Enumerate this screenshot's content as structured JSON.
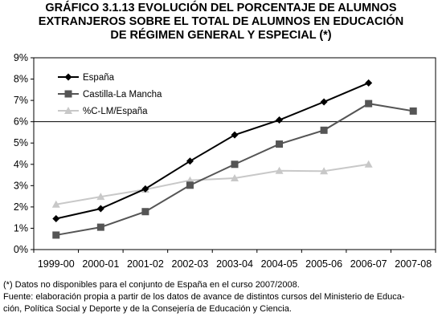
{
  "title_lines": [
    "GRÁFICO 3.1.13 EVOLUCIÓN DEL PORCENTAJE DE ALUMNOS",
    "EXTRANJEROS SOBRE EL TOTAL DE ALUMNOS EN EDUCACIÓN",
    "DE RÉGIMEN GENERAL Y ESPECIAL (*)"
  ],
  "chart_data": {
    "type": "line",
    "categories": [
      "1999-00",
      "2000-01",
      "2001-02",
      "2002-03",
      "2003-04",
      "2004-05",
      "2005-06",
      "2006-07",
      "2007-08"
    ],
    "ylim": [
      0,
      9
    ],
    "yticks": [
      "0%",
      "1%",
      "2%",
      "3%",
      "4%",
      "5%",
      "6%",
      "7%",
      "8%",
      "9%"
    ],
    "reference_line": 6,
    "legend_position": "top-left",
    "series": [
      {
        "name": "España",
        "color": "#000000",
        "marker": "diamond",
        "values": [
          1.45,
          1.92,
          2.85,
          4.15,
          5.38,
          6.08,
          6.93,
          7.82,
          null
        ]
      },
      {
        "name": "Castilla-La Mancha",
        "color": "#555555",
        "marker": "square",
        "values": [
          0.68,
          1.05,
          1.78,
          3.02,
          4.0,
          4.95,
          5.6,
          6.85,
          6.5
        ]
      },
      {
        "name": "%C-LM/España",
        "color": "#c8c8c8",
        "marker": "triangle",
        "values": [
          2.12,
          2.48,
          2.82,
          3.25,
          3.35,
          3.7,
          3.68,
          4.0,
          null
        ]
      }
    ]
  },
  "footnotes": [
    "(*) Datos no disponibles para el conjunto de España en el curso 2007/2008.",
    "Fuente: elaboración propia a partir de los datos de avance de distintos cursos del Ministerio de Educa-",
    "ción, Política Social y Deporte y de la Consejería de Educación y Ciencia."
  ]
}
